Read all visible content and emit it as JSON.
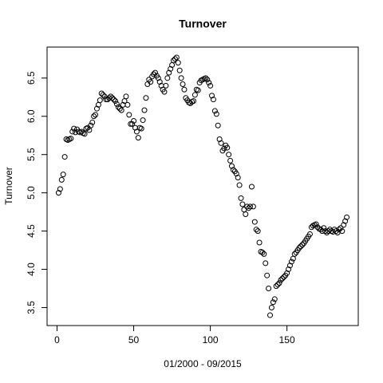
{
  "chart_data": {
    "type": "scatter",
    "title": "Turnover",
    "xlabel": "01/2000 - 09/2015",
    "ylabel": "Turnover",
    "x": [
      1,
      2,
      3,
      4,
      5,
      6,
      7,
      8,
      9,
      10,
      11,
      12,
      13,
      14,
      15,
      16,
      17,
      18,
      19,
      20,
      21,
      22,
      23,
      24,
      25,
      26,
      27,
      28,
      29,
      30,
      31,
      32,
      33,
      34,
      35,
      36,
      37,
      38,
      39,
      40,
      41,
      42,
      43,
      44,
      45,
      46,
      47,
      48,
      49,
      50,
      51,
      52,
      53,
      54,
      55,
      56,
      57,
      58,
      59,
      60,
      61,
      62,
      63,
      64,
      65,
      66,
      67,
      68,
      69,
      70,
      71,
      72,
      73,
      74,
      75,
      76,
      77,
      78,
      79,
      80,
      81,
      82,
      83,
      84,
      85,
      86,
      87,
      88,
      89,
      90,
      91,
      92,
      93,
      94,
      95,
      96,
      97,
      98,
      99,
      100,
      101,
      102,
      103,
      104,
      105,
      106,
      107,
      108,
      109,
      110,
      111,
      112,
      113,
      114,
      115,
      116,
      117,
      118,
      119,
      120,
      121,
      122,
      123,
      124,
      125,
      126,
      127,
      128,
      129,
      130,
      131,
      132,
      133,
      134,
      135,
      136,
      137,
      138,
      139,
      140,
      141,
      142,
      143,
      144,
      145,
      146,
      147,
      148,
      149,
      150,
      151,
      152,
      153,
      154,
      155,
      156,
      157,
      158,
      159,
      160,
      161,
      162,
      163,
      164,
      165,
      166,
      167,
      168,
      169,
      170,
      171,
      172,
      173,
      174,
      175,
      176,
      177,
      178,
      179,
      180,
      181,
      182,
      183,
      184,
      185,
      186,
      187,
      188,
      189
    ],
    "values": [
      5.0,
      5.05,
      5.17,
      5.24,
      5.47,
      5.7,
      5.69,
      5.7,
      5.71,
      5.8,
      5.84,
      5.79,
      5.83,
      5.8,
      5.79,
      5.8,
      5.78,
      5.77,
      5.84,
      5.85,
      5.82,
      5.88,
      5.92,
      6.0,
      6.02,
      6.1,
      6.15,
      6.21,
      6.3,
      6.28,
      6.26,
      6.22,
      6.22,
      6.24,
      6.26,
      6.24,
      6.22,
      6.2,
      6.16,
      6.12,
      6.1,
      6.08,
      6.15,
      6.2,
      6.26,
      6.15,
      6.02,
      5.9,
      5.9,
      5.94,
      5.85,
      5.8,
      5.72,
      5.85,
      5.84,
      5.95,
      6.08,
      6.24,
      6.42,
      6.48,
      6.45,
      6.52,
      6.55,
      6.57,
      6.53,
      6.5,
      6.45,
      6.4,
      6.35,
      6.32,
      6.4,
      6.5,
      6.57,
      6.62,
      6.67,
      6.73,
      6.75,
      6.77,
      6.7,
      6.6,
      6.5,
      6.42,
      6.35,
      6.24,
      6.21,
      6.18,
      6.17,
      6.19,
      6.2,
      6.28,
      6.35,
      6.34,
      6.44,
      6.47,
      6.48,
      6.49,
      6.5,
      6.48,
      6.44,
      6.4,
      6.27,
      6.22,
      6.07,
      6.03,
      5.88,
      5.7,
      5.65,
      5.55,
      5.58,
      5.62,
      5.59,
      5.5,
      5.42,
      5.35,
      5.3,
      5.28,
      5.25,
      5.2,
      5.1,
      4.93,
      4.85,
      4.78,
      4.72,
      4.82,
      4.8,
      4.82,
      5.08,
      4.82,
      4.62,
      4.52,
      4.5,
      4.35,
      4.23,
      4.22,
      4.2,
      4.08,
      3.92,
      3.75,
      3.4,
      3.5,
      3.57,
      3.61,
      3.78,
      3.8,
      3.82,
      3.86,
      3.88,
      3.9,
      3.92,
      3.95,
      4.0,
      4.05,
      4.1,
      4.14,
      4.2,
      4.22,
      4.25,
      4.28,
      4.3,
      4.32,
      4.34,
      4.37,
      4.4,
      4.43,
      4.46,
      4.55,
      4.57,
      4.58,
      4.59,
      4.55,
      4.53,
      4.52,
      4.5,
      4.54,
      4.5,
      4.48,
      4.5,
      4.52,
      4.5,
      4.49,
      4.52,
      4.5,
      4.48,
      4.52,
      4.54,
      4.5,
      4.58,
      4.63,
      4.68
    ],
    "color": "#000000",
    "xlim": [
      -6.52,
      196.52
    ],
    "xticks": [
      0,
      50,
      100,
      150
    ],
    "ylim": [
      3.265,
      6.905
    ],
    "yticks": [
      3.5,
      {
        "value": 4,
        "label": "4.0"
      },
      4.5,
      {
        "value": 5,
        "label": "5.0"
      },
      5.5,
      {
        "value": 6,
        "label": "6.0"
      },
      6.5
    ],
    "grid": false
  }
}
